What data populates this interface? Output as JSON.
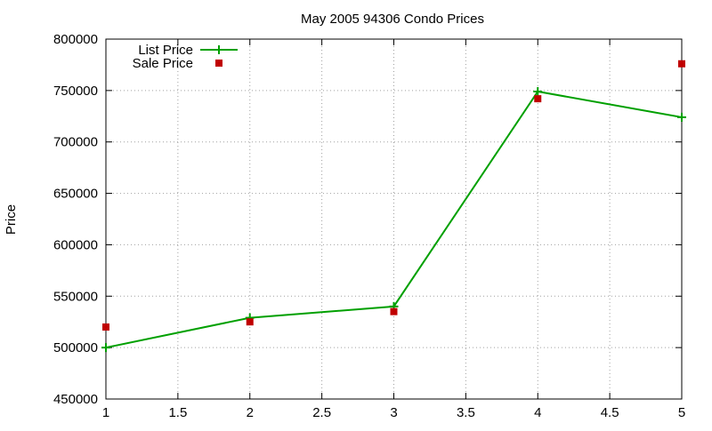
{
  "chart_data": {
    "type": "line",
    "title": "May 2005 94306 Condo Prices",
    "xlabel": "",
    "ylabel": "Price",
    "xlim": [
      1,
      5
    ],
    "ylim": [
      450000,
      800000
    ],
    "xticks": [
      1,
      1.5,
      2,
      2.5,
      3,
      3.5,
      4,
      4.5,
      5
    ],
    "xtick_labels": [
      "1",
      "1.5",
      "2",
      "2.5",
      "3",
      "3.5",
      "4",
      "4.5",
      "5"
    ],
    "yticks": [
      450000,
      500000,
      550000,
      600000,
      650000,
      700000,
      750000,
      800000
    ],
    "ytick_labels": [
      "450000",
      "500000",
      "550000",
      "600000",
      "650000",
      "700000",
      "750000",
      "800000"
    ],
    "grid": true,
    "legend_position": "top-left",
    "series": [
      {
        "name": "List Price",
        "style": "linespoints",
        "marker": "plus",
        "color": "#00a000",
        "x": [
          1,
          2,
          3,
          4,
          5
        ],
        "y": [
          500000,
          529000,
          540000,
          749000,
          724000
        ]
      },
      {
        "name": "Sale Price",
        "style": "points",
        "marker": "square",
        "color": "#c00000",
        "x": [
          1,
          2,
          3,
          4,
          5
        ],
        "y": [
          520000,
          525000,
          535000,
          742000,
          776000
        ]
      }
    ]
  }
}
